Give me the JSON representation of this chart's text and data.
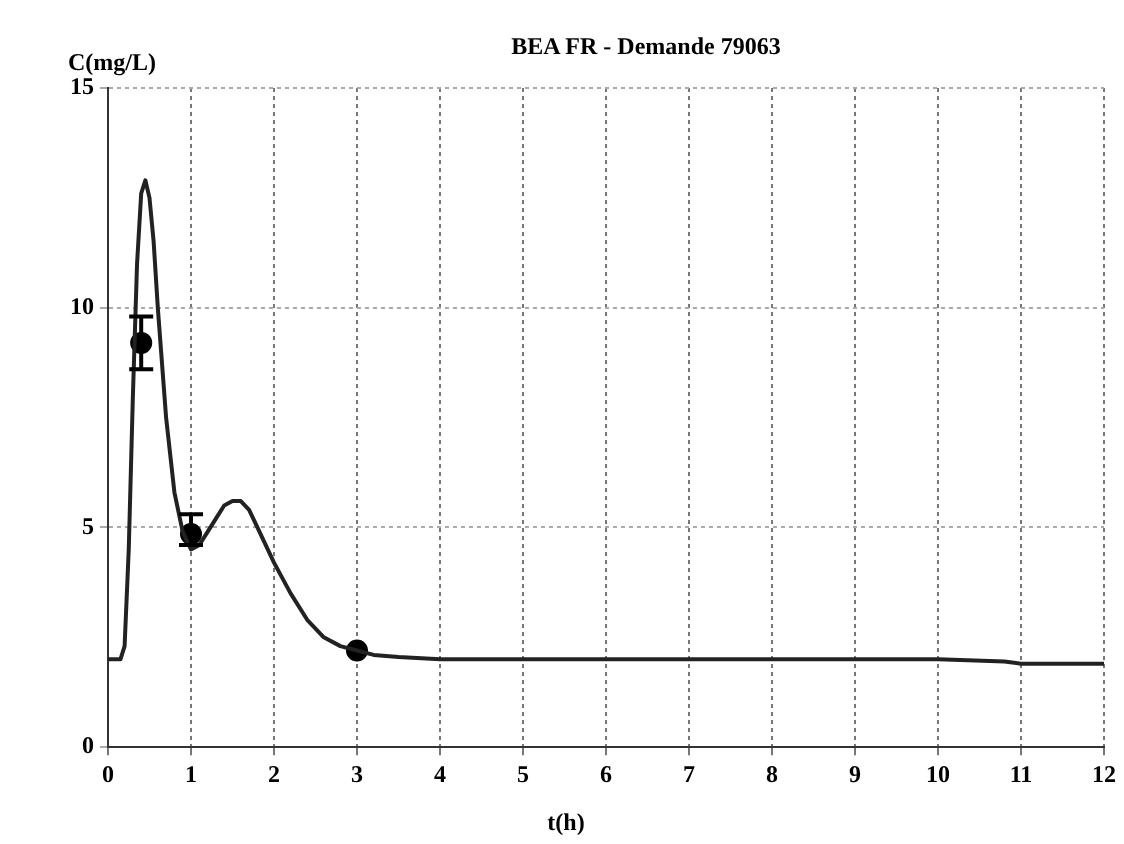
{
  "chart_data": {
    "type": "line",
    "title": "BEA FR - Demande 79063",
    "xlabel": "t(h)",
    "ylabel": "C(mg/L)",
    "xlim": [
      0,
      12
    ],
    "xticks": [
      0,
      1,
      2,
      3,
      4,
      5,
      6,
      7,
      8,
      9,
      10,
      11,
      12
    ],
    "ylim": [
      0,
      15
    ],
    "yticks": [
      0,
      5,
      10,
      15
    ],
    "grid": true,
    "legend": false,
    "series": [
      {
        "color": "#222222",
        "line_style": "solid",
        "marker": "none",
        "x": [
          0,
          0.15,
          0.2,
          0.25,
          0.3,
          0.35,
          0.4,
          0.45,
          0.5,
          0.55,
          0.6,
          0.7,
          0.8,
          0.9,
          1.0,
          1.1,
          1.2,
          1.3,
          1.4,
          1.5,
          1.6,
          1.7,
          1.8,
          2.0,
          2.2,
          2.4,
          2.6,
          2.8,
          3.0,
          3.2,
          3.5,
          4,
          5,
          6,
          7,
          8,
          9,
          10,
          10.8,
          11,
          12
        ],
        "values": [
          2.0,
          2.0,
          2.3,
          4.5,
          8,
          11,
          12.6,
          12.9,
          12.5,
          11.5,
          10,
          7.5,
          5.8,
          4.9,
          4.5,
          4.6,
          4.9,
          5.2,
          5.5,
          5.6,
          5.6,
          5.4,
          5.0,
          4.2,
          3.5,
          2.9,
          2.5,
          2.3,
          2.2,
          2.1,
          2.05,
          2.0,
          2.0,
          2.0,
          2.0,
          2.0,
          2.0,
          2.0,
          1.95,
          1.9,
          1.9
        ]
      },
      {
        "type": "scatter",
        "color": "#000000",
        "marker": "circle",
        "x": [
          0.4,
          1,
          3
        ],
        "values": [
          9.2,
          4.85,
          2.2
        ],
        "errors": [
          [
            8.6,
            9.8
          ],
          [
            4.6,
            5.3
          ],
          null
        ]
      }
    ]
  }
}
